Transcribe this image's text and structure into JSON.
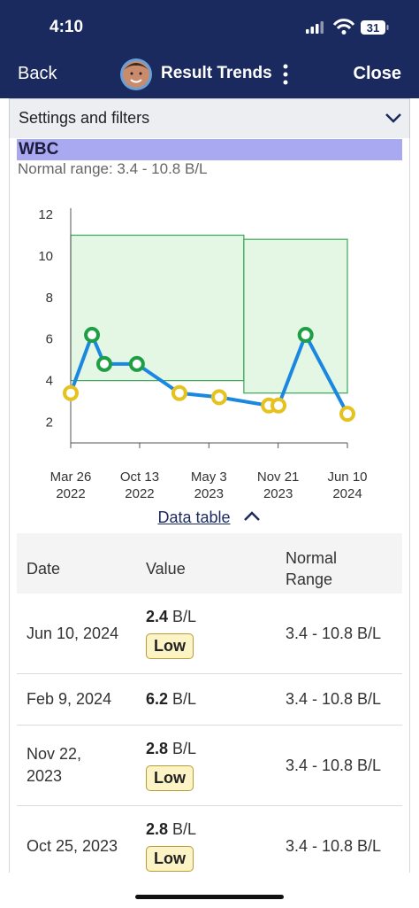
{
  "status_bar": {
    "time": "4:10",
    "battery": "31"
  },
  "nav": {
    "back": "Back",
    "title": "Result Trends",
    "close": "Close"
  },
  "settings": {
    "label": "Settings and filters"
  },
  "test": {
    "name": "WBC",
    "normal_range": "Normal range: 3.4 - 10.8 B/L"
  },
  "chart_data": {
    "type": "line",
    "x": [
      "2022-03-26",
      "2022-05-27",
      "2022-07-02",
      "2022-10-05",
      "2023-02-06",
      "2023-06-02",
      "2023-10-25",
      "2023-11-22",
      "2024-02-09",
      "2024-06-10"
    ],
    "values": [
      3.4,
      6.2,
      4.8,
      4.8,
      3.4,
      3.2,
      2.8,
      2.8,
      6.2,
      2.4
    ],
    "color": "#1a88e0",
    "marker_colors": {
      "in_range": "#1e9e45",
      "out_of_range": "#e6c21e"
    },
    "normal_range": [
      {
        "x_start": "2022-03-26",
        "x_end": "2023-08-13",
        "low": 4.0,
        "high": 11.0
      },
      {
        "x_start": "2023-08-13",
        "x_end": "2024-06-10",
        "low": 3.4,
        "high": 10.8
      }
    ],
    "band_color": "#e4f6e4",
    "band_edge_color": "#3aa655",
    "xlim": [
      "2022-03-26",
      "2024-06-10"
    ],
    "xticks": [
      {
        "value": "2022-03-26",
        "label": "Mar 26 2022"
      },
      {
        "value": "2022-10-13",
        "label": "Oct 13 2022"
      },
      {
        "value": "2023-05-03",
        "label": "May 3 2023"
      },
      {
        "value": "2023-11-21",
        "label": "Nov 21 2023"
      },
      {
        "value": "2024-06-10",
        "label": "Jun 10 2024"
      }
    ],
    "ylim": [
      1,
      12.3
    ],
    "yticks": [
      2,
      4,
      6,
      8,
      10,
      12
    ]
  },
  "data_table": {
    "toggle": "Data table",
    "columns": [
      "Date",
      "Value",
      "Normal Range"
    ],
    "rows": [
      {
        "date": "Jun 10, 2024",
        "value": 2.4,
        "unit": "B/L",
        "flag": "Low",
        "range": "3.4 - 10.8 B/L"
      },
      {
        "date": "Feb 9, 2024",
        "value": 6.2,
        "unit": "B/L",
        "range": "3.4 - 10.8 B/L"
      },
      {
        "date": "Nov 22, 2023",
        "value": 2.8,
        "unit": "B/L",
        "flag": "Low",
        "range": "3.4 - 10.8 B/L"
      },
      {
        "date": "Oct 25, 2023",
        "value": 2.8,
        "unit": "B/L",
        "flag": "Low",
        "range": "3.4 - 10.8 B/L"
      }
    ]
  }
}
